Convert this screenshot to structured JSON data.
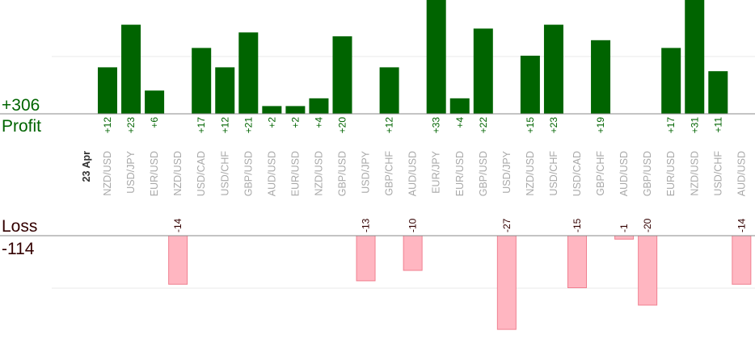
{
  "chart_data": {
    "type": "bar",
    "date_label": "23 Apr",
    "profit_total": "+306",
    "profit_label": "Profit",
    "loss_label": "Loss",
    "loss_total": "-114",
    "categories": [
      "NZD/USD",
      "USD/JPY",
      "EUR/USD",
      "NZD/USD",
      "USD/CAD",
      "USD/CHF",
      "GBP/USD",
      "AUD/USD",
      "EUR/USD",
      "NZD/USD",
      "GBP/USD",
      "USD/JPY",
      "GBP/CHF",
      "AUD/USD",
      "EUR/JPY",
      "EUR/USD",
      "GBP/USD",
      "USD/JPY",
      "NZD/USD",
      "USD/CHF",
      "USD/CAD",
      "GBP/CHF",
      "AUD/USD",
      "GBP/USD",
      "EUR/USD",
      "NZD/USD",
      "USD/CHF",
      "AUD/USD"
    ],
    "series": [
      {
        "name": "Profit",
        "values": [
          12,
          23,
          6,
          null,
          17,
          12,
          21,
          2,
          2,
          4,
          20,
          null,
          12,
          null,
          33,
          4,
          22,
          null,
          15,
          23,
          null,
          19,
          null,
          null,
          17,
          31,
          11,
          null
        ],
        "labels": [
          "+12",
          "+23",
          "+6",
          "",
          "+17",
          "+12",
          "+21",
          "+2",
          "+2",
          "+4",
          "+20",
          "",
          "+12",
          "",
          "+33",
          "+4",
          "+22",
          "",
          "+15",
          "+23",
          "",
          "+19",
          "",
          "",
          "+17",
          "+31",
          "+11",
          ""
        ]
      },
      {
        "name": "Loss",
        "values": [
          null,
          null,
          null,
          -14,
          null,
          null,
          null,
          null,
          null,
          null,
          null,
          -13,
          null,
          -10,
          null,
          null,
          null,
          -27,
          null,
          null,
          -15,
          null,
          -1,
          -20,
          null,
          null,
          null,
          -14
        ],
        "labels": [
          "",
          "",
          "",
          "-14",
          "",
          "",
          "",
          "",
          "",
          "",
          "",
          "-13",
          "",
          "-10",
          "",
          "",
          "",
          "-27",
          "",
          "",
          "-15",
          "",
          "-1",
          "-20",
          "",
          "",
          "",
          "-14"
        ]
      }
    ],
    "colors": {
      "profit": "#006400",
      "profit_text": "#006400",
      "loss_fill": "#ffb6c1",
      "loss_stroke": "#f08090",
      "loss_text": "#330000",
      "axis": "#888888",
      "grid": "#e8e8e8"
    }
  }
}
